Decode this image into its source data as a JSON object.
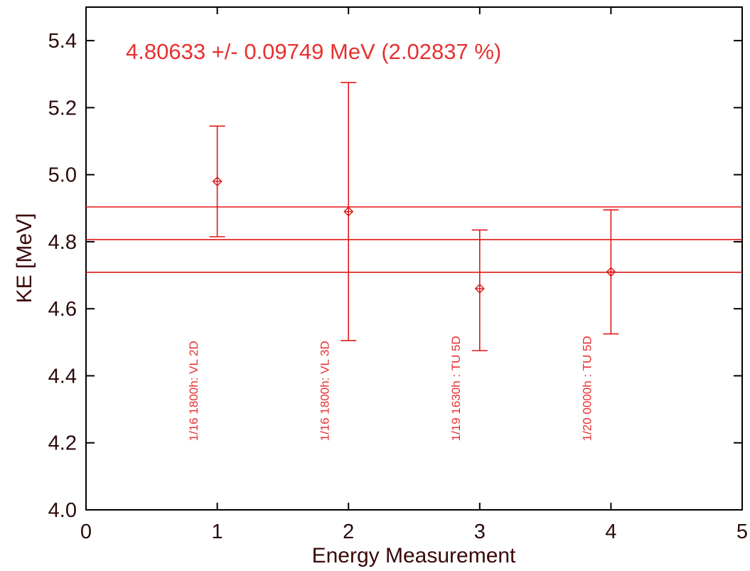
{
  "chart_data": {
    "type": "scatter",
    "title": "",
    "annotation": "4.80633 +/- 0.09749 MeV (2.02837 %)",
    "xlabel": "Energy Measurement",
    "ylabel": "KE [MeV]",
    "xlim": [
      0,
      5
    ],
    "ylim": [
      4.0,
      5.5
    ],
    "x_ticks": [
      0,
      1,
      2,
      3,
      4,
      5
    ],
    "x_tick_labels": [
      "0",
      "1",
      "2",
      "3",
      "4",
      "5"
    ],
    "y_ticks": [
      4.0,
      4.2,
      4.4,
      4.6,
      4.8,
      5.0,
      5.2,
      5.4
    ],
    "y_tick_labels": [
      "4.0",
      "4.2",
      "4.4",
      "4.6",
      "4.8",
      "5.0",
      "5.2",
      "5.4"
    ],
    "points": [
      {
        "x": 1,
        "y": 4.98,
        "err_low": 4.815,
        "err_high": 5.145,
        "label": "1/16 1800h: VL 2D"
      },
      {
        "x": 2,
        "y": 4.89,
        "err_low": 4.505,
        "err_high": 5.275,
        "label": "1/16 1800h: VL 3D"
      },
      {
        "x": 3,
        "y": 4.66,
        "err_low": 4.475,
        "err_high": 4.835,
        "label": "1/19 1630h : TU 5D"
      },
      {
        "x": 4,
        "y": 4.71,
        "err_low": 4.525,
        "err_high": 4.895,
        "label": "1/20 0000h : TU 5D"
      }
    ],
    "hlines": [
      4.90382,
      4.80633,
      4.70884
    ],
    "grid": false,
    "colors": {
      "data": "#e01818",
      "axes": "#000000",
      "text": "#2a0a0a"
    }
  }
}
